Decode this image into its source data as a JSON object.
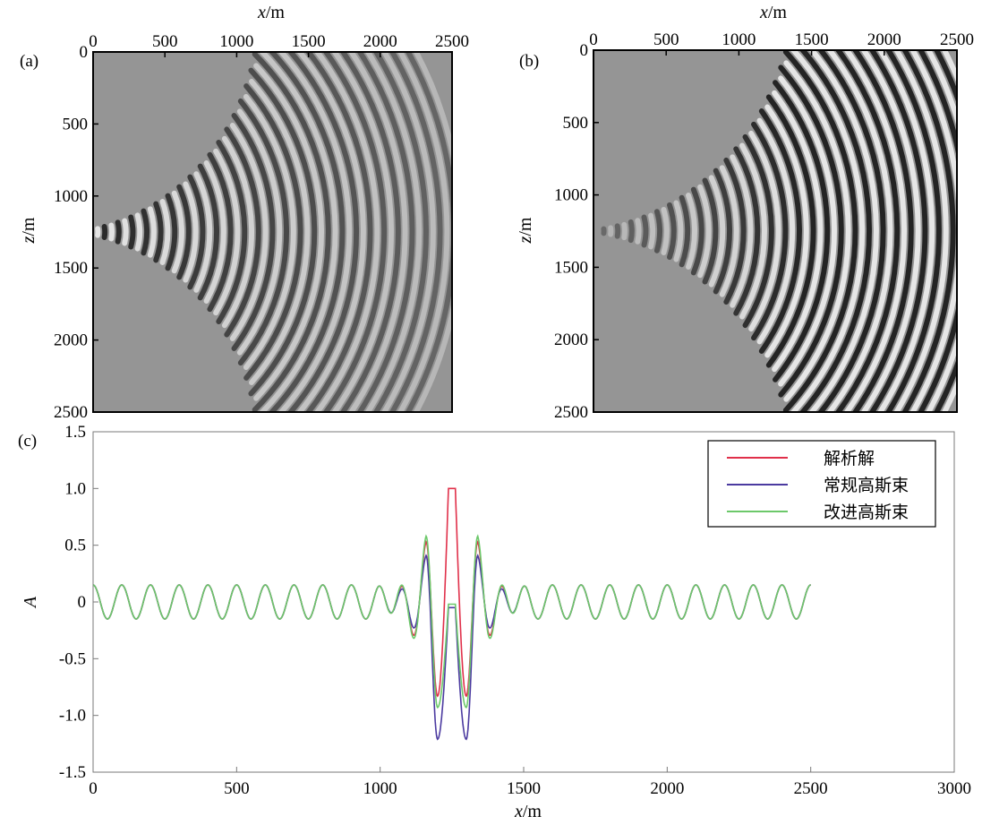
{
  "panel_a": {
    "label": "(a)"
  },
  "panel_b": {
    "label": "(b)"
  },
  "panel_c": {
    "label": "(c)"
  },
  "colors": {
    "analytic": "#e0304a",
    "conventional": "#4b3aa0",
    "improved": "#6cc86a",
    "wavefield_background": "#959595"
  },
  "chart_data": [
    {
      "type": "heatmap",
      "panel": "(a)",
      "description_of_field": "wavefield snapshot, source at left edge",
      "xlabel_var": "x",
      "xlabel_unit": "/m",
      "ylabel_var": "z",
      "ylabel_unit": "/m",
      "xlim": [
        0,
        2500
      ],
      "ylim": [
        0,
        2500
      ],
      "x_ticks": [
        "0",
        "500",
        "1000",
        "1500",
        "2000",
        "2500"
      ],
      "y_ticks": [
        "0",
        "500",
        "1000",
        "1500",
        "2000",
        "2500"
      ],
      "source_x": 0,
      "source_z": 1250,
      "colormap": "gray"
    },
    {
      "type": "heatmap",
      "panel": "(b)",
      "xlabel_var": "x",
      "xlabel_unit": "/m",
      "ylabel_var": "z",
      "ylabel_unit": "/m",
      "xlim": [
        0,
        2500
      ],
      "ylim": [
        0,
        2500
      ],
      "x_ticks": [
        "0",
        "500",
        "1000",
        "1500",
        "2000",
        "2500"
      ],
      "y_ticks": [
        "0",
        "500",
        "1000",
        "1500",
        "2000",
        "2500"
      ],
      "source_x": 0,
      "source_z": 1250,
      "colormap": "gray"
    },
    {
      "type": "line",
      "panel": "(c)",
      "xlabel_var": "x",
      "xlabel_unit": "/m",
      "ylabel_var": "A",
      "xlim": [
        0,
        3000
      ],
      "ylim": [
        -1.5,
        1.5
      ],
      "x_ticks": [
        "0",
        "500",
        "1000",
        "1500",
        "2000",
        "2500",
        "3000"
      ],
      "y_ticks": [
        "1.5",
        "1.0",
        "0.5",
        "0",
        "-0.5",
        "-1.0",
        "-1.5"
      ],
      "y_tick_values": [
        1.5,
        1.0,
        0.5,
        0,
        -0.5,
        -1.0,
        -1.5
      ],
      "legend_position": "top-right",
      "series": [
        {
          "name": "解析解",
          "color": "#e0304a",
          "center_peak": 1.0,
          "side_lobe_peak": 0.53,
          "trough": -0.83
        },
        {
          "name": "常规高斯束",
          "color": "#4b3aa0",
          "center_peak": -0.05,
          "side_lobe_peak": 0.41,
          "trough": -1.21
        },
        {
          "name": "改进高斯束",
          "color": "#6cc86a",
          "center_peak": -0.02,
          "side_lobe_peak": 0.58,
          "trough": -0.93
        }
      ],
      "x_range_data": [
        0,
        2500
      ],
      "oscillation_period_m": 100,
      "far_field_amplitude": 0.15
    }
  ]
}
